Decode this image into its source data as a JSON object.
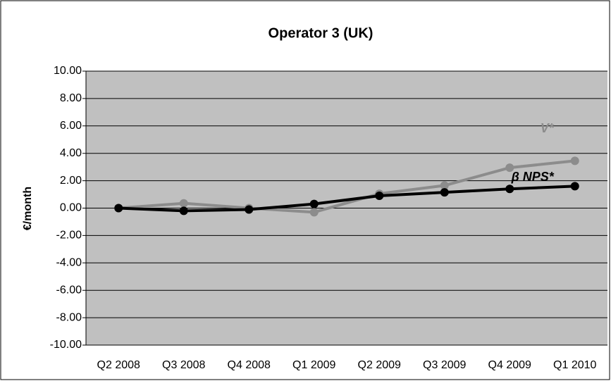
{
  "chart_data": {
    "type": "line",
    "title": "Operator 3 (UK)",
    "ylabel": "€/month",
    "categories": [
      "Q2 2008",
      "Q3 2008",
      "Q4 2008",
      "Q1 2009",
      "Q2 2009",
      "Q3 2009",
      "Q4 2009",
      "Q1 2010"
    ],
    "series": [
      {
        "name": "V*",
        "color": "#8c8c8c",
        "values": [
          0,
          0.35,
          0,
          -0.3,
          1.05,
          1.65,
          2.95,
          3.45
        ]
      },
      {
        "name": "β NPS*",
        "color": "#000000",
        "values": [
          0,
          -0.2,
          -0.1,
          0.3,
          0.9,
          1.15,
          1.4,
          1.6
        ]
      }
    ],
    "ylim": [
      -10,
      10
    ],
    "yticks": [
      {
        "value": -10,
        "label": "-10.00"
      },
      {
        "value": -8,
        "label": "-8.00"
      },
      {
        "value": -6,
        "label": "-6.00"
      },
      {
        "value": -4,
        "label": "-4.00"
      },
      {
        "value": -2,
        "label": "-2.00"
      },
      {
        "value": 0,
        "label": "0.00"
      },
      {
        "value": 2,
        "label": "2.00"
      },
      {
        "value": 4,
        "label": "4.00"
      },
      {
        "value": 6,
        "label": "6.00"
      },
      {
        "value": 8,
        "label": "8.00"
      },
      {
        "value": 10,
        "label": "10.00"
      }
    ],
    "grid": true,
    "plot_background": "#c0c0c0"
  }
}
